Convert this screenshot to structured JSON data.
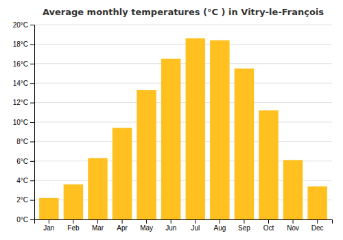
{
  "chart_data": {
    "type": "bar",
    "title": "Average monthly temperatures (°C ) in Vitry-le-François",
    "categories": [
      "Jan",
      "Feb",
      "Mar",
      "Apr",
      "May",
      "Jun",
      "Jul",
      "Aug",
      "Sep",
      "Oct",
      "Nov",
      "Dec"
    ],
    "values": [
      2.2,
      3.6,
      6.3,
      9.4,
      13.3,
      16.5,
      18.6,
      18.4,
      15.5,
      11.2,
      6.1,
      3.4
    ],
    "color": "#FFC020",
    "ylim": [
      0,
      20
    ],
    "yticks": [
      {
        "value": 0,
        "label": "0°C"
      },
      {
        "value": 2,
        "label": "2°C"
      },
      {
        "value": 4,
        "label": "4°C"
      },
      {
        "value": 6,
        "label": "6°C"
      },
      {
        "value": 8,
        "label": "8°C"
      },
      {
        "value": 10,
        "label": "10°C"
      },
      {
        "value": 12,
        "label": "12°C"
      },
      {
        "value": 14,
        "label": "14°C"
      },
      {
        "value": 16,
        "label": "16°C"
      },
      {
        "value": 18,
        "label": "18°C"
      },
      {
        "value": 20,
        "label": "20°C"
      }
    ],
    "grid": true
  }
}
